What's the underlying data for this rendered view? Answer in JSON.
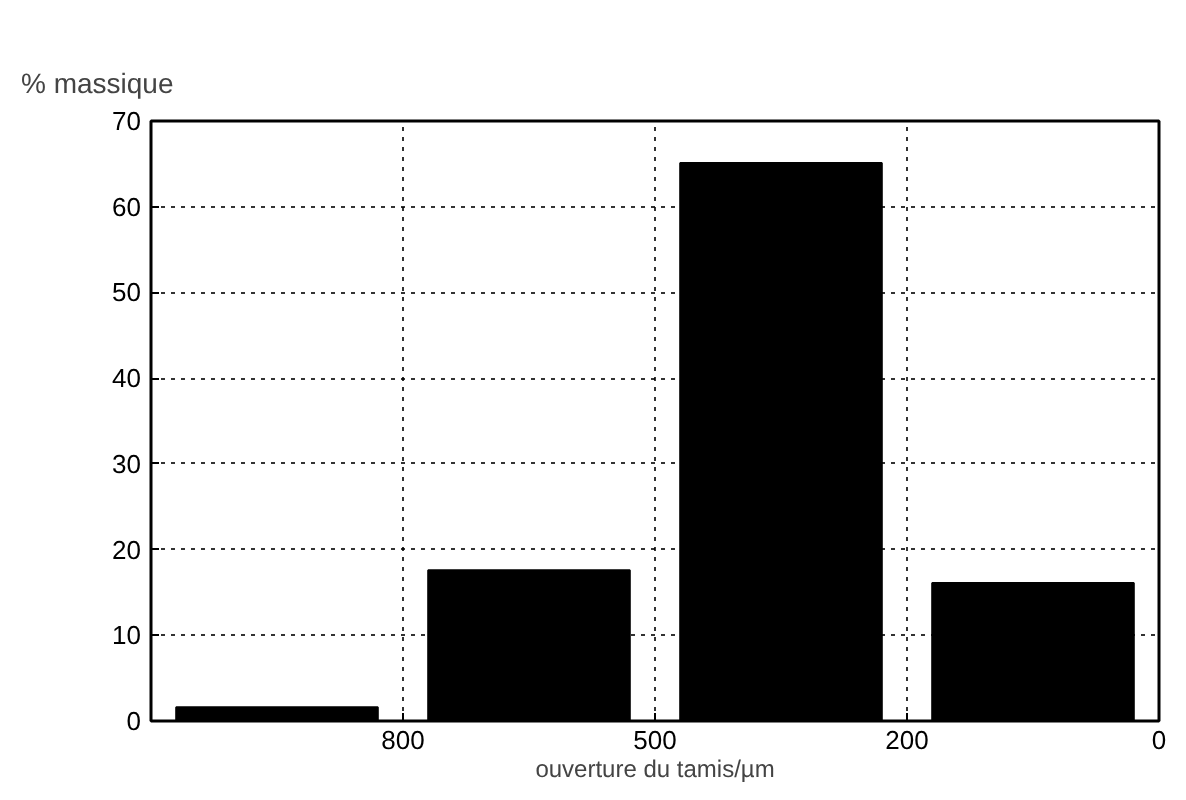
{
  "chart_data": {
    "type": "bar",
    "ylabel": "% massique",
    "xlabel": "ouverture du tamis/µm",
    "categories": [
      null,
      null,
      null,
      null
    ],
    "values": [
      1.6,
      17.6,
      65.1,
      16.1
    ],
    "color": "#000000",
    "annotations": [
      "800",
      "500",
      "200",
      "0"
    ],
    "ylim": [
      0,
      70
    ],
    "yticks": [
      0,
      10,
      20,
      30,
      40,
      50,
      60,
      70
    ],
    "grid": true
  }
}
